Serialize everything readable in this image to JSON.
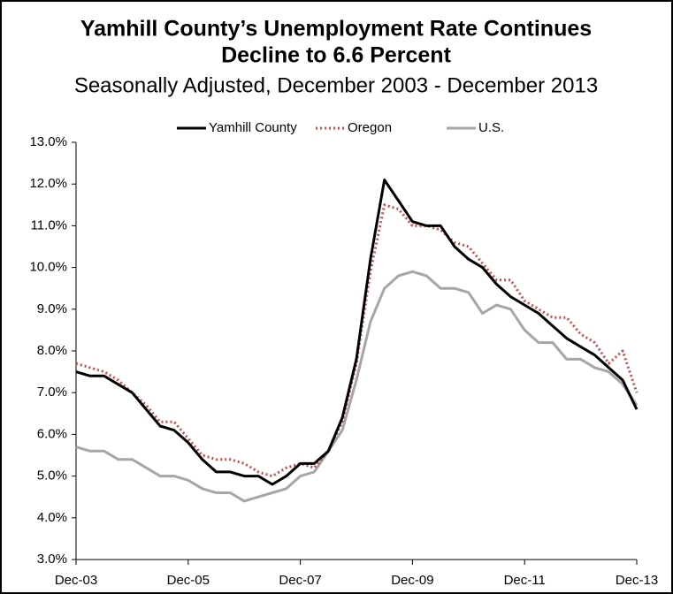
{
  "chart_data": {
    "type": "line",
    "title": [
      "Yamhill County’s Unemployment Rate Continues",
      "Decline to 6.6 Percent"
    ],
    "subtitle": "Seasonally Adjusted, December 2003 - December 2013",
    "categories": [
      "Dec-03",
      null,
      null,
      null,
      null,
      null,
      null,
      null,
      "Dec-05",
      null,
      null,
      null,
      null,
      null,
      null,
      null,
      "Dec-07",
      null,
      null,
      null,
      null,
      null,
      null,
      null,
      "Dec-09",
      null,
      null,
      null,
      null,
      null,
      null,
      null,
      "Dec-11",
      null,
      null,
      null,
      null,
      null,
      null,
      null,
      "Dec-13"
    ],
    "series": [
      {
        "name": "Yamhill County",
        "color": "#000000",
        "style": "solid",
        "values": [
          7.5,
          7.4,
          7.4,
          7.2,
          7.0,
          6.6,
          6.2,
          6.1,
          5.8,
          5.4,
          5.1,
          5.1,
          5.0,
          5.0,
          4.8,
          5.0,
          5.3,
          5.3,
          5.6,
          6.4,
          7.8,
          10.2,
          12.1,
          11.6,
          11.1,
          11.0,
          11.0,
          10.5,
          10.2,
          10.0,
          9.6,
          9.3,
          9.1,
          8.9,
          8.6,
          8.3,
          8.1,
          7.9,
          7.6,
          7.3,
          6.6
        ]
      },
      {
        "name": "Oregon",
        "color": "#c0504d",
        "style": "dotted",
        "values": [
          7.7,
          7.6,
          7.5,
          7.3,
          7.0,
          6.7,
          6.3,
          6.3,
          5.9,
          5.5,
          5.4,
          5.4,
          5.3,
          5.1,
          5.0,
          5.2,
          5.3,
          5.2,
          5.6,
          6.3,
          7.7,
          9.9,
          11.5,
          11.4,
          11.0,
          11.0,
          10.9,
          10.6,
          10.5,
          10.1,
          9.7,
          9.7,
          9.2,
          9.0,
          8.8,
          8.8,
          8.4,
          8.2,
          7.7,
          8.0,
          7.0
        ]
      },
      {
        "name": "U.S.",
        "color": "#a6a6a6",
        "style": "solid",
        "values": [
          5.7,
          5.6,
          5.6,
          5.4,
          5.4,
          5.2,
          5.0,
          5.0,
          4.9,
          4.7,
          4.6,
          4.6,
          4.4,
          4.5,
          4.6,
          4.7,
          5.0,
          5.1,
          5.6,
          6.1,
          7.3,
          8.7,
          9.5,
          9.8,
          9.9,
          9.8,
          9.5,
          9.5,
          9.4,
          8.9,
          9.1,
          9.0,
          8.5,
          8.2,
          8.2,
          7.8,
          7.8,
          7.6,
          7.5,
          7.2,
          6.7
        ]
      }
    ],
    "ylim": [
      3,
      13
    ],
    "yticks": [
      {
        "value": 3,
        "label": "3.0%"
      },
      {
        "value": 4,
        "label": "4.0%"
      },
      {
        "value": 5,
        "label": "5.0%"
      },
      {
        "value": 6,
        "label": "6.0%"
      },
      {
        "value": 7,
        "label": "7.0%"
      },
      {
        "value": 8,
        "label": "8.0%"
      },
      {
        "value": 9,
        "label": "9.0%"
      },
      {
        "value": 10,
        "label": "10.0%"
      },
      {
        "value": 11,
        "label": "11.0%"
      },
      {
        "value": 12,
        "label": "12.0%"
      },
      {
        "value": 13,
        "label": "13.0%"
      }
    ],
    "grid": false,
    "legend": "top"
  }
}
